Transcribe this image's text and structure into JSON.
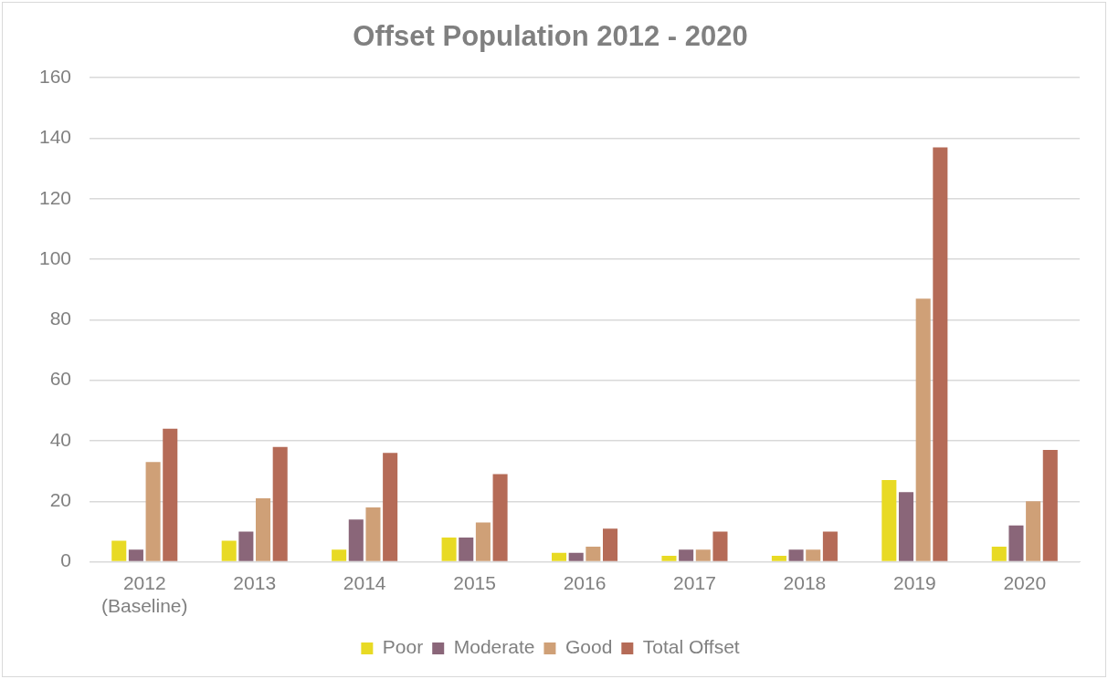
{
  "chart_data": {
    "type": "bar",
    "title": "Offset Population 2012 - 2020",
    "categories": [
      "2012 (Baseline)",
      "2013",
      "2014",
      "2015",
      "2016",
      "2017",
      "2018",
      "2019",
      "2020"
    ],
    "series": [
      {
        "name": "Poor",
        "color": "#e8da24",
        "values": [
          7,
          7,
          4,
          8,
          3,
          2,
          2,
          27,
          5
        ]
      },
      {
        "name": "Moderate",
        "color": "#8a6679",
        "values": [
          4,
          10,
          14,
          8,
          3,
          4,
          4,
          23,
          12
        ]
      },
      {
        "name": "Good",
        "color": "#cfa077",
        "values": [
          33,
          21,
          18,
          13,
          5,
          4,
          4,
          87,
          20
        ]
      },
      {
        "name": "Total Offset",
        "color": "#b56b57",
        "values": [
          44,
          38,
          36,
          29,
          11,
          10,
          10,
          137,
          37
        ]
      }
    ],
    "ylim": [
      0,
      160
    ],
    "yticks": [
      0,
      20,
      40,
      60,
      80,
      100,
      120,
      140,
      160
    ],
    "grid": "y",
    "legend": "bottom"
  }
}
